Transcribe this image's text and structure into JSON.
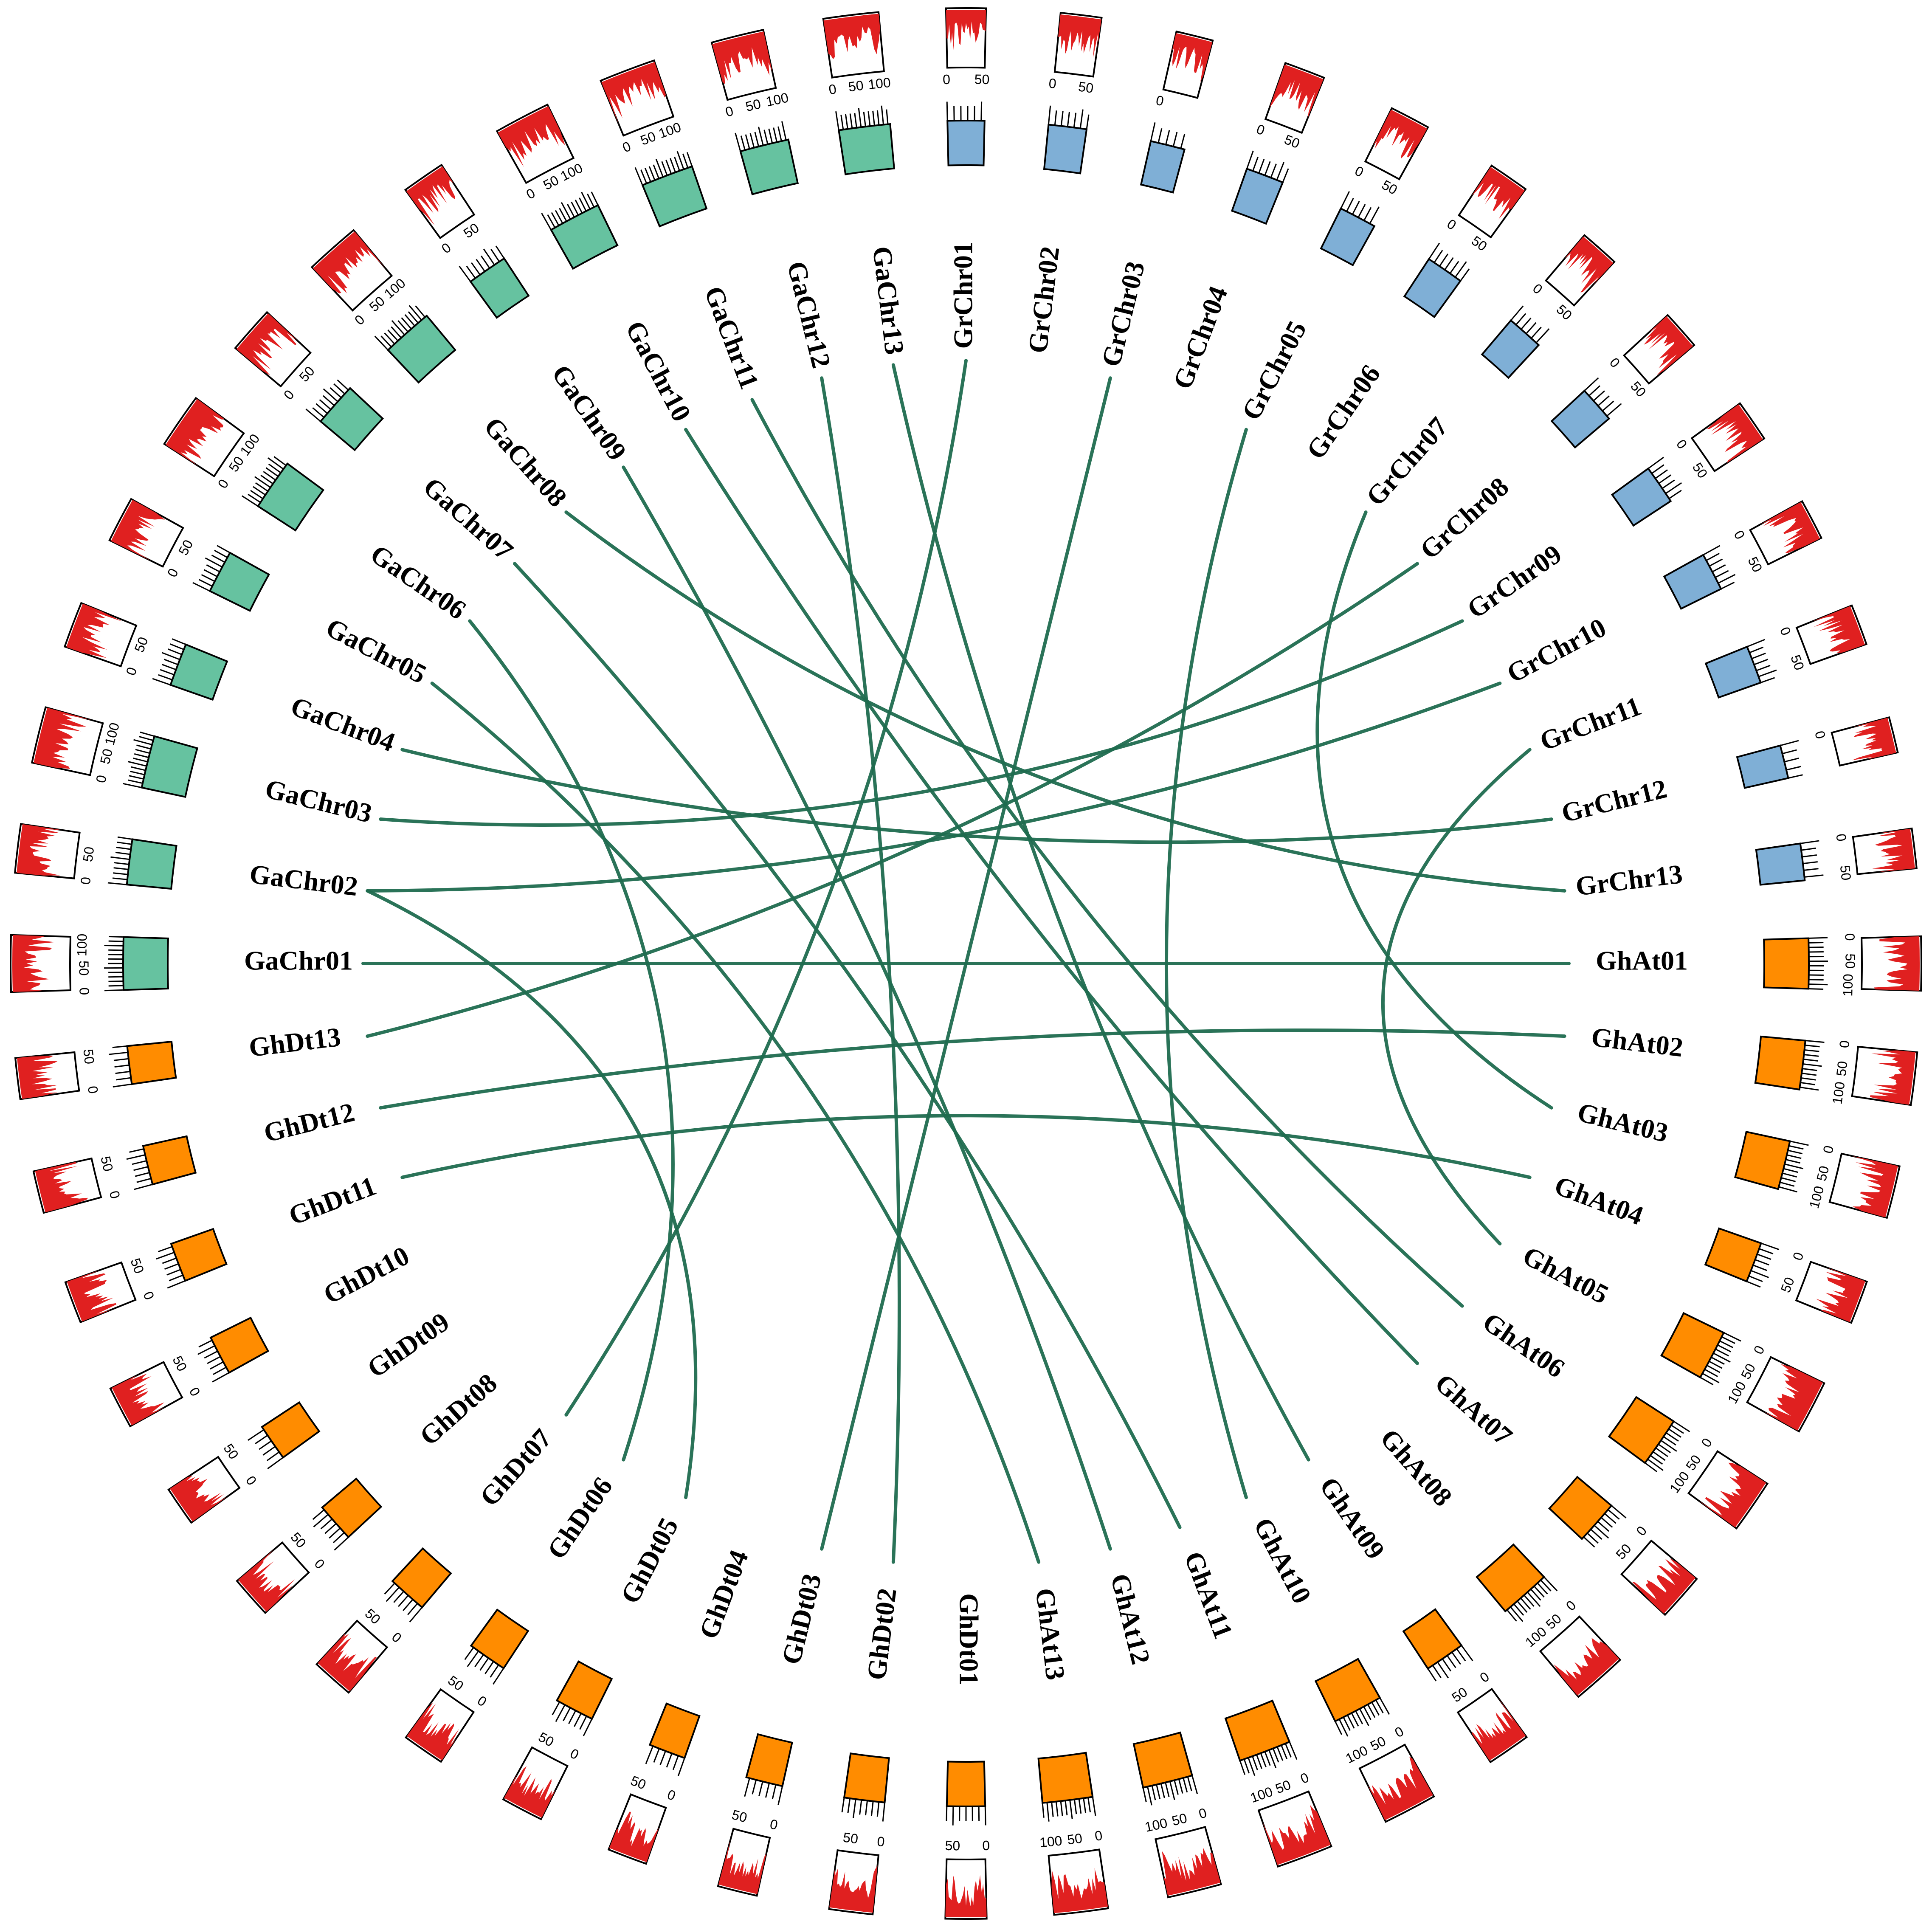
{
  "colors": {
    "ga_ideogram": "#66c2a0",
    "gr_ideogram": "#7fafd6",
    "gh_ideogram": "#ff8c00",
    "density": "#e02020",
    "link": "#1f6b4f"
  },
  "chromosomes": [
    {
      "name": "GaChr01",
      "group": "ga",
      "length": 120
    },
    {
      "name": "GaChr02",
      "group": "ga",
      "length": 90
    },
    {
      "name": "GaChr03",
      "group": "ga",
      "length": 120
    },
    {
      "name": "GaChr04",
      "group": "ga",
      "length": 80
    },
    {
      "name": "GaChr05",
      "group": "ga",
      "length": 80
    },
    {
      "name": "GaChr06",
      "group": "ga",
      "length": 115
    },
    {
      "name": "GaChr07",
      "group": "ga",
      "length": 85
    },
    {
      "name": "GaChr08",
      "group": "ga",
      "length": 115
    },
    {
      "name": "GaChr09",
      "group": "ga",
      "length": 70
    },
    {
      "name": "GaChr10",
      "group": "ga",
      "length": 120
    },
    {
      "name": "GaChr11",
      "group": "ga",
      "length": 120
    },
    {
      "name": "GaChr12",
      "group": "ga",
      "length": 105
    },
    {
      "name": "GaChr13",
      "group": "ga",
      "length": 115
    },
    {
      "name": "GrChr01",
      "group": "gr",
      "length": 55
    },
    {
      "name": "GrChr02",
      "group": "gr",
      "length": 60
    },
    {
      "name": "GrChr03",
      "group": "gr",
      "length": 45
    },
    {
      "name": "GrChr04",
      "group": "gr",
      "length": 60
    },
    {
      "name": "GrChr05",
      "group": "gr",
      "length": 58
    },
    {
      "name": "GrChr06",
      "group": "gr",
      "length": 60
    },
    {
      "name": "GrChr07",
      "group": "gr",
      "length": 55
    },
    {
      "name": "GrChr08",
      "group": "gr",
      "length": 55
    },
    {
      "name": "GrChr09",
      "group": "gr",
      "length": 65
    },
    {
      "name": "GrChr10",
      "group": "gr",
      "length": 60
    },
    {
      "name": "GrChr11",
      "group": "gr",
      "length": 60
    },
    {
      "name": "GrChr12",
      "group": "gr",
      "length": 40
    },
    {
      "name": "GrChr13",
      "group": "gr",
      "length": 55
    },
    {
      "name": "GhAt01",
      "group": "gh",
      "length": 110
    },
    {
      "name": "GhAt02",
      "group": "gh",
      "length": 105
    },
    {
      "name": "GhAt03",
      "group": "gh",
      "length": 105
    },
    {
      "name": "GhAt04",
      "group": "gh",
      "length": 70
    },
    {
      "name": "GhAt05",
      "group": "gh",
      "length": 110
    },
    {
      "name": "GhAt06",
      "group": "gh",
      "length": 110
    },
    {
      "name": "GhAt07",
      "group": "gh",
      "length": 85
    },
    {
      "name": "GhAt08",
      "group": "gh",
      "length": 115
    },
    {
      "name": "GhAt09",
      "group": "gh",
      "length": 70
    },
    {
      "name": "GhAt10",
      "group": "gh",
      "length": 110
    },
    {
      "name": "GhAt11",
      "group": "gh",
      "length": 120
    },
    {
      "name": "GhAt12",
      "group": "gh",
      "length": 110
    },
    {
      "name": "GhAt13",
      "group": "gh",
      "length": 110
    },
    {
      "name": "GhDt01",
      "group": "gh",
      "length": 60
    },
    {
      "name": "GhDt02",
      "group": "gh",
      "length": 70
    },
    {
      "name": "GhDt03",
      "group": "gh",
      "length": 55
    },
    {
      "name": "GhDt04",
      "group": "gh",
      "length": 55
    },
    {
      "name": "GhDt05",
      "group": "gh",
      "length": 65
    },
    {
      "name": "GhDt06",
      "group": "gh",
      "length": 65
    },
    {
      "name": "GhDt07",
      "group": "gh",
      "length": 65
    },
    {
      "name": "GhDt08",
      "group": "gh",
      "length": 65
    },
    {
      "name": "GhDt09",
      "group": "gh",
      "length": 55
    },
    {
      "name": "GhDt10",
      "group": "gh",
      "length": 65
    },
    {
      "name": "GhDt11",
      "group": "gh",
      "length": 65
    },
    {
      "name": "GhDt12",
      "group": "gh",
      "length": 65
    },
    {
      "name": "GhDt13",
      "group": "gh",
      "length": 60
    }
  ],
  "links": [
    [
      "GaChr01",
      "GhAt01"
    ],
    [
      "GaChr02",
      "GrChr10"
    ],
    [
      "GaChr02",
      "GhDt05"
    ],
    [
      "GaChr03",
      "GrChr09"
    ],
    [
      "GaChr04",
      "GrChr12"
    ],
    [
      "GaChr05",
      "GhAt13"
    ],
    [
      "GaChr06",
      "GhDt06"
    ],
    [
      "GaChr07",
      "GhAt11"
    ],
    [
      "GaChr08",
      "GrChr13"
    ],
    [
      "GaChr09",
      "GhAt12"
    ],
    [
      "GaChr10",
      "GhAt07"
    ],
    [
      "GaChr11",
      "GhAt06"
    ],
    [
      "GaChr12",
      "GhDt02"
    ],
    [
      "GaChr13",
      "GhAt09"
    ],
    [
      "GrChr01",
      "GhDt07"
    ],
    [
      "GrChr03",
      "GhDt03"
    ],
    [
      "GrChr05",
      "GhAt10"
    ],
    [
      "GrChr07",
      "GhAt03"
    ],
    [
      "GrChr11",
      "GhAt05"
    ],
    [
      "GhDt11",
      "GhAt04"
    ],
    [
      "GhDt12",
      "GhAt02"
    ],
    [
      "GhDt13",
      "GrChr08"
    ]
  ]
}
